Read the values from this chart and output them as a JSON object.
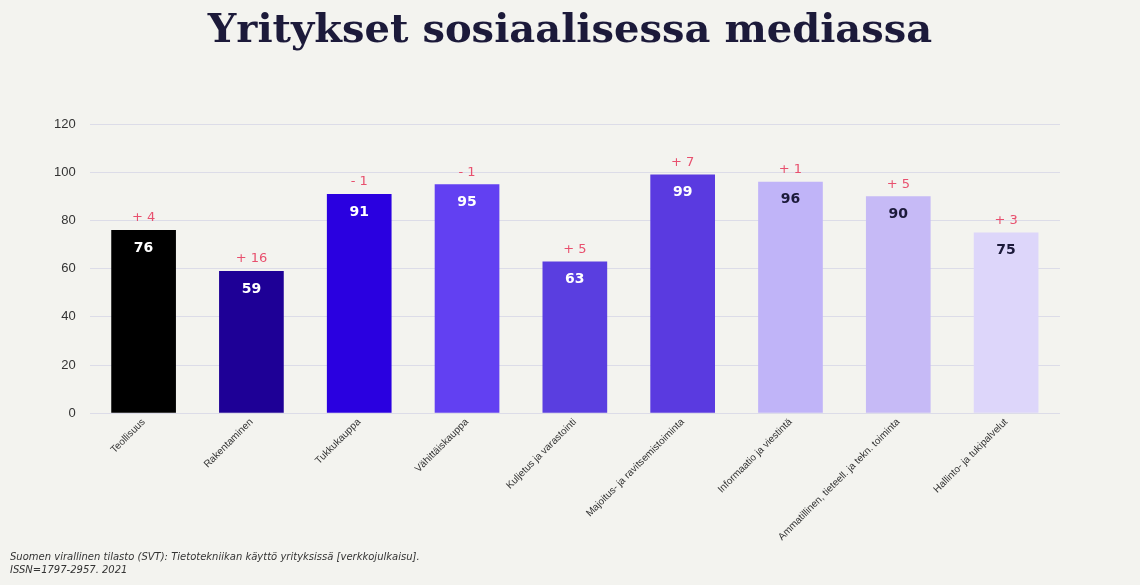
{
  "chart_data": {
    "type": "bar",
    "title": "Yritykset sosiaalisessa mediassa",
    "categories": [
      "Teollisuus",
      "Rakentaminen",
      "Tukkukauppa",
      "Vähittäiskauppa",
      "Kuljetus ja varastointi",
      "Majoitus- ja ravitsemistoiminta",
      "Informaatio ja viestintä",
      "Ammatillinen, tieteell. ja tekn. toiminta",
      "Hallinto- ja tukipalvelut"
    ],
    "values": [
      76,
      59,
      91,
      95,
      63,
      99,
      96,
      90,
      75
    ],
    "colors": [
      "#000000",
      "#1e0096",
      "#2a00e0",
      "#6240f2",
      "#5a3ee0",
      "#5a3ae0",
      "#c0b4f8",
      "#c6baf6",
      "#ddd6fa"
    ],
    "ylim": [
      0,
      120
    ],
    "yticks": [
      0,
      20,
      40,
      60,
      80,
      100,
      120
    ],
    "grid": "y",
    "legend": false,
    "data_labels": true,
    "annotations": [
      {
        "text": "+ 4",
        "x": "Teollisuus",
        "y": 76
      },
      {
        "text": "+ 16",
        "x": "Rakentaminen",
        "y": 59
      },
      {
        "text": "- 1",
        "x": "Tukkukauppa",
        "y": 91
      },
      {
        "text": "- 1",
        "x": "Vähittäiskauppa",
        "y": 95
      },
      {
        "text": "+ 5",
        "x": "Kuljetus ja varastointi",
        "y": 63
      },
      {
        "text": "+ 7",
        "x": "Majoitus- ja ravitsemistoiminta",
        "y": 99
      },
      {
        "text": "+ 1",
        "x": "Informaatio ja viestintä",
        "y": 96
      },
      {
        "text": "+ 5",
        "x": "Ammatillinen, tieteell. ja tekn. toiminta",
        "y": 90
      },
      {
        "text": "+ 3",
        "x": "Hallinto- ja tukipalvelut",
        "y": 75
      },
      "Suomen virallinen tilasto (SVT): Tietotekniikan käyttö yrityksissä [verkkojulkaisu].",
      "ISSN=1797-2957. 2021"
    ]
  }
}
